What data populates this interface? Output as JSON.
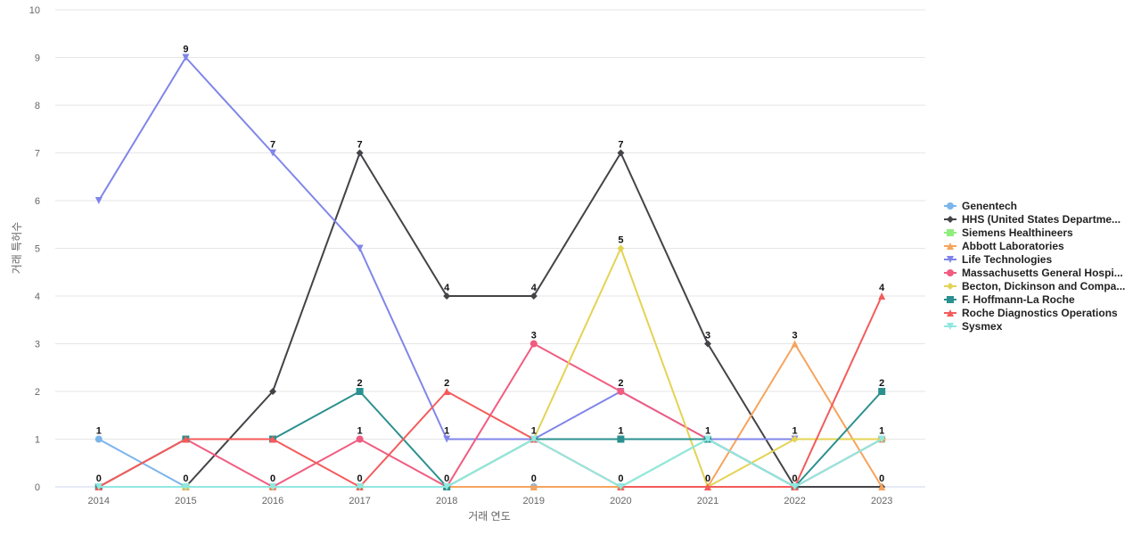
{
  "chart_data": {
    "type": "line",
    "xlabel": "거래 연도",
    "ylabel": "거래 특허수",
    "ylim": [
      0,
      10
    ],
    "yticks": [
      0,
      1,
      2,
      3,
      4,
      5,
      6,
      7,
      8,
      9,
      10
    ],
    "grid": true,
    "legend_position": "right",
    "categories": [
      "2014",
      "2015",
      "2016",
      "2017",
      "2018",
      "2019",
      "2020",
      "2021",
      "2022",
      "2023"
    ],
    "series": [
      {
        "name": "Genentech",
        "color": "#7cb5ec",
        "marker": "circle",
        "values": [
          1,
          0,
          0,
          0,
          0,
          0,
          0,
          1,
          0,
          1
        ]
      },
      {
        "name": "HHS (United States Departme...",
        "color": "#434348",
        "marker": "diamond",
        "values": [
          0,
          0,
          2,
          7,
          4,
          4,
          7,
          3,
          0,
          0
        ]
      },
      {
        "name": "Siemens Healthineers",
        "color": "#90ed7d",
        "marker": "square",
        "values": [
          0,
          0,
          0,
          0,
          0,
          1,
          0,
          1,
          0,
          1
        ]
      },
      {
        "name": "Abbott Laboratories",
        "color": "#f7a35c",
        "marker": "triangle",
        "values": [
          0,
          0,
          0,
          0,
          0,
          0,
          0,
          0,
          3,
          0
        ]
      },
      {
        "name": "Life Technologies",
        "color": "#8085e9",
        "marker": "triangle-down",
        "values": [
          6,
          9,
          7,
          5,
          1,
          1,
          2,
          1,
          1,
          1
        ]
      },
      {
        "name": "Massachusetts General Hospi...",
        "color": "#f15c80",
        "marker": "circle",
        "values": [
          0,
          1,
          0,
          1,
          0,
          3,
          2,
          1,
          0,
          1
        ]
      },
      {
        "name": "Becton, Dickinson and Compa...",
        "color": "#e4d354",
        "marker": "diamond",
        "values": [
          0,
          0,
          0,
          0,
          0,
          1,
          5,
          0,
          1,
          1
        ]
      },
      {
        "name": "F. Hoffmann-La Roche",
        "color": "#2b908f",
        "marker": "square",
        "values": [
          0,
          1,
          1,
          2,
          0,
          1,
          1,
          1,
          0,
          2
        ]
      },
      {
        "name": "Roche Diagnostics Operations",
        "color": "#f45b5b",
        "marker": "triangle",
        "values": [
          0,
          1,
          1,
          0,
          2,
          1,
          0,
          0,
          0,
          4
        ]
      },
      {
        "name": "Sysmex",
        "color": "#91e8e1",
        "marker": "triangle-down",
        "values": [
          0,
          0,
          0,
          0,
          0,
          1,
          0,
          1,
          0,
          1
        ]
      }
    ],
    "data_labels": [
      [
        1,
        0
      ],
      [
        9,
        0
      ],
      [
        7,
        0
      ],
      [
        7,
        2,
        1,
        0
      ],
      [
        4,
        2,
        1,
        0
      ],
      [
        4,
        3,
        1,
        0
      ],
      [
        7,
        5,
        2,
        1,
        0
      ],
      [
        3,
        1,
        0
      ],
      [
        3,
        1,
        0
      ],
      [
        4,
        2,
        1,
        0
      ]
    ]
  }
}
